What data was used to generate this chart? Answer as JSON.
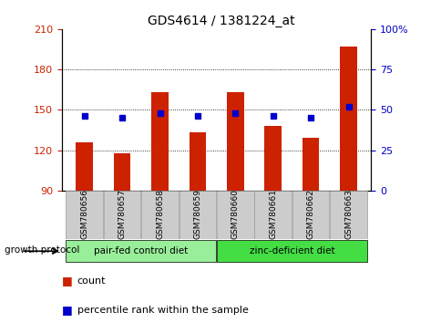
{
  "title": "GDS4614 / 1381224_at",
  "samples": [
    "GSM780656",
    "GSM780657",
    "GSM780658",
    "GSM780659",
    "GSM780660",
    "GSM780661",
    "GSM780662",
    "GSM780663"
  ],
  "bar_values": [
    126,
    118,
    163,
    133,
    163,
    138,
    129,
    197
  ],
  "percentile_values": [
    46,
    45,
    48,
    46,
    48,
    46,
    45,
    52
  ],
  "bar_color": "#cc2200",
  "marker_color": "#0000cc",
  "ylim_left": [
    90,
    210
  ],
  "ylim_right": [
    0,
    100
  ],
  "yticks_left": [
    90,
    120,
    150,
    180,
    210
  ],
  "yticks_right": [
    0,
    25,
    50,
    75,
    100
  ],
  "ytick_labels_right": [
    "0",
    "25",
    "50",
    "75",
    "100%"
  ],
  "grid_values": [
    120,
    150,
    180
  ],
  "group1_label": "pair-fed control diet",
  "group2_label": "zinc-deficient diet",
  "group1_color": "#99ee99",
  "group2_color": "#44dd44",
  "protocol_label": "growth protocol",
  "legend_count": "count",
  "legend_percentile": "percentile rank within the sample",
  "bar_base": 90,
  "figure_bg": "#ffffff",
  "label_bg": "#cccccc"
}
